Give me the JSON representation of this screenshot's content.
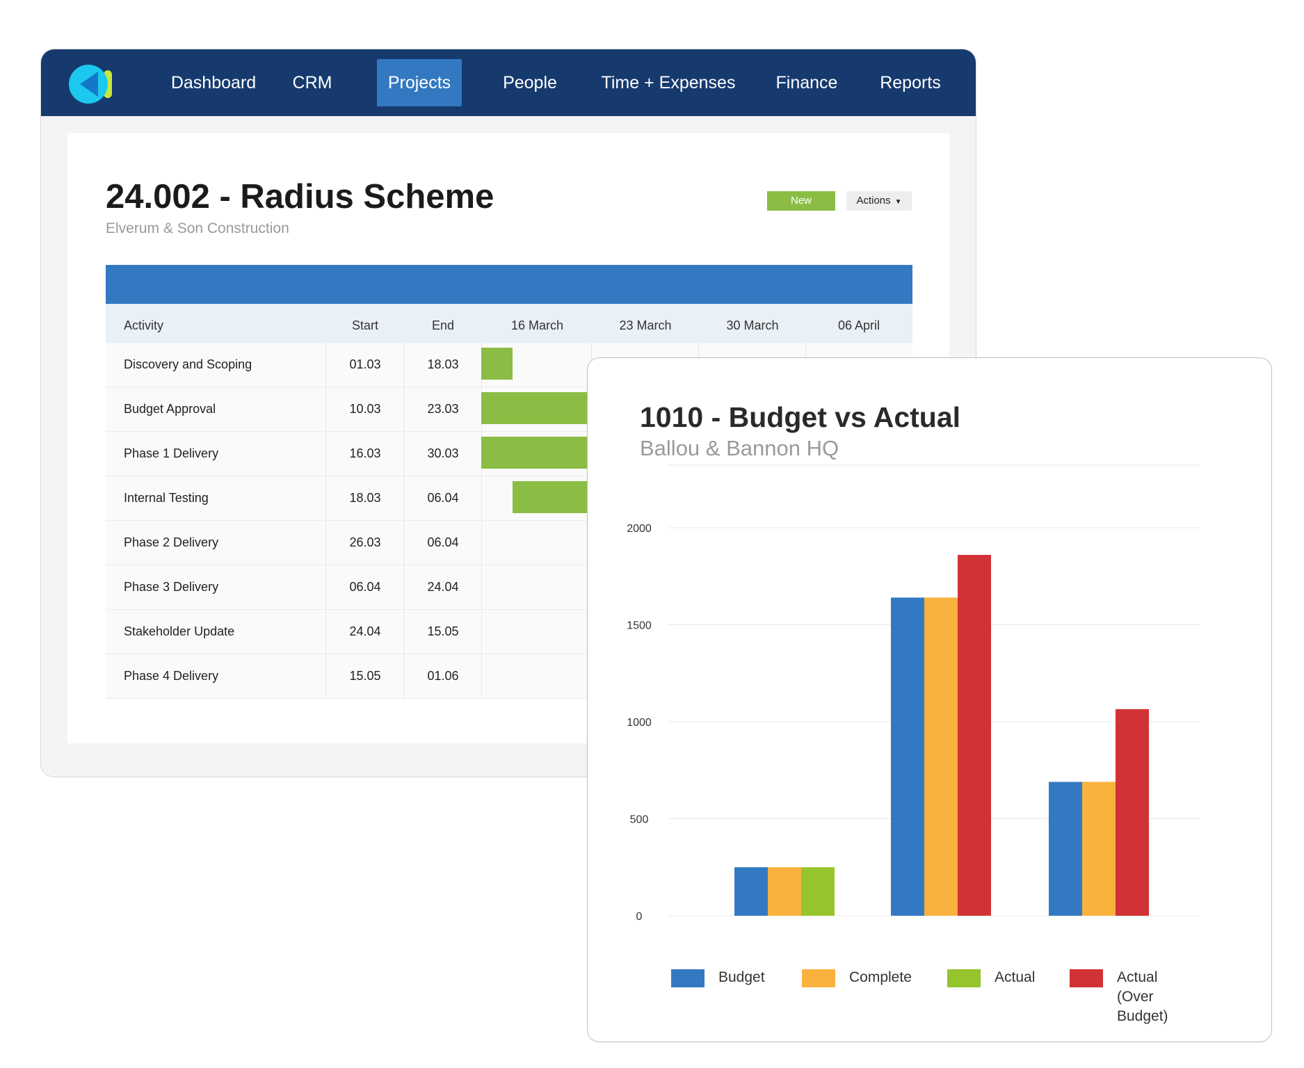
{
  "nav": {
    "items": [
      {
        "label": "Dashboard"
      },
      {
        "label": "CRM"
      },
      {
        "label": "Projects",
        "active": true
      },
      {
        "label": "People"
      },
      {
        "label": "Time + Expenses"
      },
      {
        "label": "Finance"
      },
      {
        "label": "Reports"
      }
    ]
  },
  "project": {
    "title": "24.002 - Radius Scheme",
    "client": "Elverum & Son Construction",
    "status_label": "New",
    "actions_label": "Actions",
    "status_color": "#8bbd45"
  },
  "schedule": {
    "columns": [
      "Activity",
      "Start",
      "End",
      "16 March",
      "23 March",
      "30 March",
      "06 April"
    ],
    "rows": [
      {
        "activity": "Discovery and Scoping",
        "start": "01.03",
        "end": "18.03"
      },
      {
        "activity": "Budget Approval",
        "start": "10.03",
        "end": "23.03"
      },
      {
        "activity": "Phase 1 Delivery",
        "start": "16.03",
        "end": "30.03"
      },
      {
        "activity": "Internal Testing",
        "start": "18.03",
        "end": "06.04"
      },
      {
        "activity": "Phase 2 Delivery",
        "start": "26.03",
        "end": "06.04"
      },
      {
        "activity": "Phase 3 Delivery",
        "start": "06.04",
        "end": "24.04"
      },
      {
        "activity": "Stakeholder Update",
        "start": "24.04",
        "end": "15.05"
      },
      {
        "activity": "Phase 4 Delivery",
        "start": "15.05",
        "end": "01.06"
      }
    ],
    "bar_color": "#8bbd45"
  },
  "chart_card": {
    "title": "1010 - Budget vs Actual",
    "subtitle": "Ballou & Bannon HQ"
  },
  "chart_data": {
    "type": "bar",
    "ylim": [
      0,
      2000
    ],
    "yticks": [
      "0",
      "500",
      "1000",
      "1500",
      "2000"
    ],
    "grid": true,
    "legend_position": "bottom",
    "series": [
      {
        "name": "Budget",
        "color": "#3379c2"
      },
      {
        "name": "Complete",
        "color": "#f9b23e"
      },
      {
        "name": "Actual",
        "color": "#95c42c"
      },
      {
        "name": "Actual\n(Over Budget)",
        "color": "#d13236"
      }
    ],
    "groups": [
      {
        "bars": [
          {
            "series": 0,
            "value": 250
          },
          {
            "series": 1,
            "value": 250
          },
          {
            "series": 2,
            "value": 250
          }
        ]
      },
      {
        "bars": [
          {
            "series": 0,
            "value": 1640
          },
          {
            "series": 1,
            "value": 1640
          },
          {
            "series": 3,
            "value": 1860
          }
        ]
      },
      {
        "bars": [
          {
            "series": 0,
            "value": 690
          },
          {
            "series": 1,
            "value": 690
          },
          {
            "series": 3,
            "value": 1065
          }
        ]
      }
    ]
  }
}
